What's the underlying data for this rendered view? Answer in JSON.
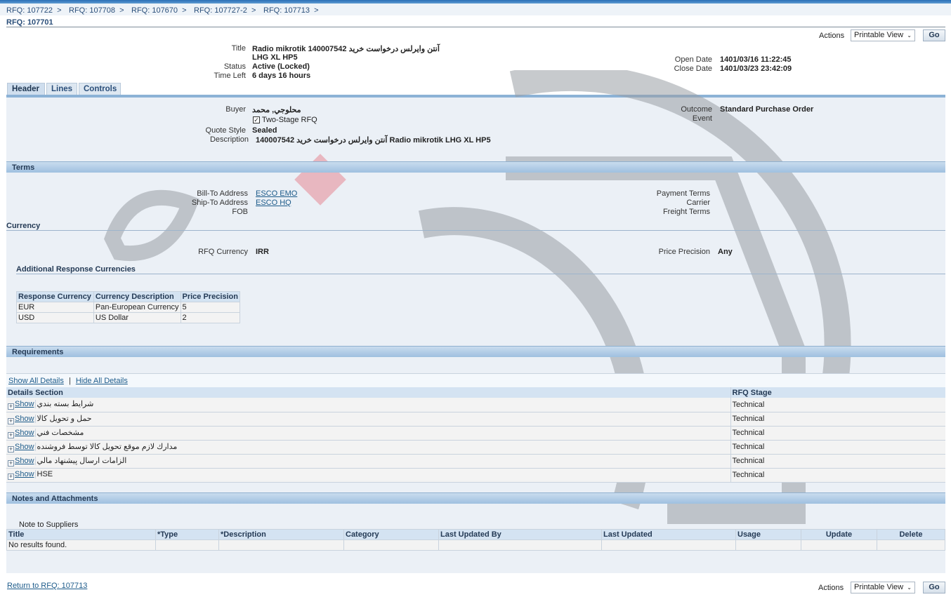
{
  "breadcrumbs": [
    "RFQ: 107722",
    "RFQ: 107708",
    "RFQ: 107670",
    "RFQ: 107727-2",
    "RFQ: 107713"
  ],
  "page_title": "RFQ: 107701",
  "actions": {
    "label": "Actions",
    "selected": "Printable View",
    "go": "Go"
  },
  "summary": {
    "title_label": "Title",
    "title_line1": "آنتن وايرلس درخواست خريد 140007542 Radio mikrotik",
    "title_line2": "LHG XL HP5",
    "status_label": "Status",
    "status": "Active (Locked)",
    "time_left_label": "Time Left",
    "time_left": "6 days 16 hours",
    "open_date_label": "Open Date",
    "open_date": "1401/03/16 11:22:45",
    "close_date_label": "Close Date",
    "close_date": "1401/03/23 23:42:09"
  },
  "tabs": [
    {
      "label": "Header",
      "active": true
    },
    {
      "label": "Lines"
    },
    {
      "label": "Controls"
    }
  ],
  "header": {
    "buyer_label": "Buyer",
    "buyer": "محلوجي, محمد",
    "two_stage_label": "Two-Stage RFQ",
    "two_stage_checked": true,
    "quote_style_label": "Quote Style",
    "quote_style": "Sealed",
    "description_label": "Description",
    "description": "آنتن وايرلس درخواست خريد 140007542 Radio mikrotik LHG XL HP5",
    "outcome_label": "Outcome",
    "outcome": "Standard Purchase Order",
    "event_label": "Event"
  },
  "terms": {
    "title": "Terms",
    "bill_to_label": "Bill-To Address",
    "bill_to": "ESCO EMO",
    "ship_to_label": "Ship-To Address",
    "ship_to": "ESCO HQ",
    "fob_label": "FOB",
    "payment_terms_label": "Payment Terms",
    "carrier_label": "Carrier",
    "freight_terms_label": "Freight Terms"
  },
  "currency": {
    "title": "Currency",
    "rfq_currency_label": "RFQ Currency",
    "rfq_currency": "IRR",
    "price_precision_label": "Price Precision",
    "price_precision": "Any",
    "additional_title": "Additional Response Currencies",
    "columns": [
      "Response Currency",
      "Currency Description",
      "Price Precision"
    ],
    "rows": [
      [
        "EUR",
        "Pan-European Currency",
        "5"
      ],
      [
        "USD",
        "US Dollar",
        "2"
      ]
    ]
  },
  "requirements": {
    "title": "Requirements",
    "show_all": "Show All Details",
    "hide_all": "Hide All Details",
    "columns": [
      "Details Section",
      "RFQ Stage"
    ],
    "show_label": "Show",
    "rows": [
      {
        "section": "شرايط بسته بندي",
        "stage": "Technical"
      },
      {
        "section": "حمل و تحويل كالا",
        "stage": "Technical"
      },
      {
        "section": "مشخصات فني",
        "stage": "Technical"
      },
      {
        "section": "مدارك لازم موقع تحويل كالا توسط فروشنده",
        "stage": "Technical"
      },
      {
        "section": "الزامات ارسال پيشنهاد مالي",
        "stage": "Technical"
      },
      {
        "section": "HSE",
        "stage": "Technical"
      }
    ]
  },
  "notes": {
    "title": "Notes and Attachments",
    "note_to_suppliers": "Note to Suppliers",
    "columns": [
      "Title",
      "*Type",
      "*Description",
      "Category",
      "Last Updated By",
      "Last Updated",
      "Usage",
      "Update",
      "Delete"
    ],
    "empty": "No results found."
  },
  "return_link": "Return to RFQ: 107713"
}
